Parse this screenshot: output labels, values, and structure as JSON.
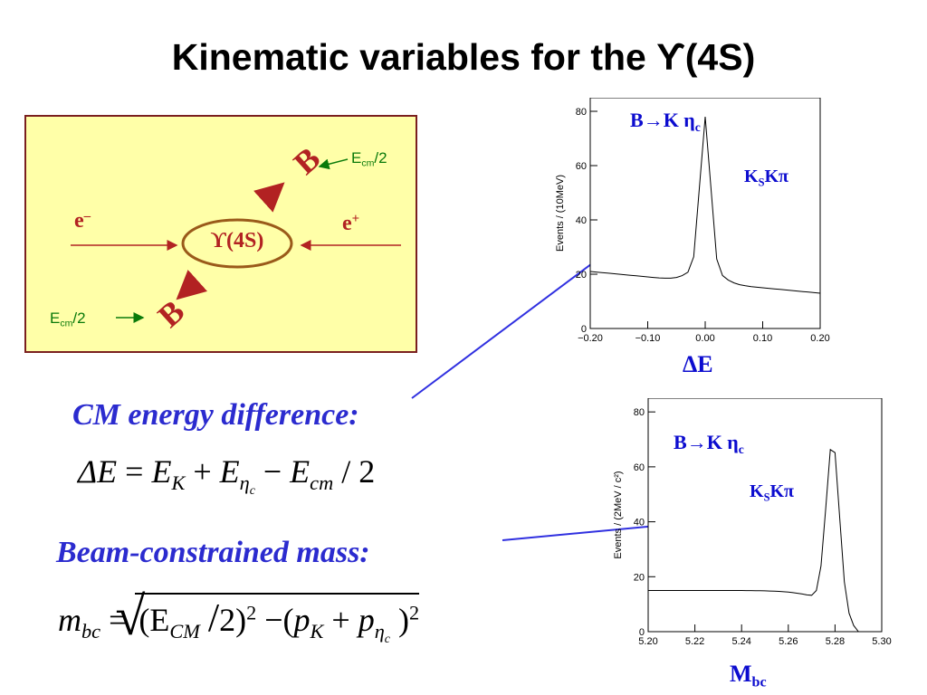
{
  "title": "Kinematic variables for the ϒ(4S)",
  "diagram": {
    "center_label": "ϒ(4S)",
    "e_minus": "e",
    "e_minus_sup": "–",
    "e_plus": "e",
    "e_plus_sup": "+",
    "b_upper": "B",
    "b_lower": "B",
    "ecm_upper": "E",
    "ecm_upper_sub": "cm",
    "ecm_upper_tail": "/2",
    "ecm_lower": "E",
    "ecm_lower_sub": "cm",
    "ecm_lower_tail": "/2",
    "colors": {
      "box_bg": "#ffffa8",
      "box_border": "#7a1f1f",
      "arrows": "#b22222",
      "ecm": "#0a7a0a"
    }
  },
  "sections": {
    "cm_heading": "CM energy difference:",
    "mbc_heading": "Beam-constrained mass:"
  },
  "formula1": {
    "lhs": "ΔE",
    "eq": "=",
    "t1": "E",
    "t1_sub": "K",
    "plus": "+",
    "t2": "E",
    "t2_sub": "η",
    "t2_subsub": "c",
    "minus": "−",
    "t3": "E",
    "t3_sub": "cm",
    "tail": "/ 2"
  },
  "formula2": {
    "lhs": "m",
    "lhs_sub": "bc",
    "eq": "=",
    "a": "(E",
    "a_sub": "CM",
    "b": "2)",
    "b_sup": "2",
    "minus": "−(",
    "p1": "p",
    "p1_sub": "K",
    "plus": "+",
    "p2": "p",
    "p2_sub": "η",
    "p2_subsub": "c",
    "close": ")",
    "close_sup": "2"
  },
  "plot_top": {
    "annotation_main": "B",
    "annotation_arrow": "→",
    "annotation_rest": "K η",
    "annotation_sub": "c",
    "decay_k": "K",
    "decay_k_sub": "S",
    "decay_rest": "Kπ",
    "caption": "ΔE",
    "ylabel": "Events / (10MeV)",
    "xticks": [
      "−0.20",
      "−0.10",
      "0.00",
      "0.10",
      "0.20"
    ],
    "yticks": [
      "0",
      "20",
      "40",
      "60",
      "80"
    ],
    "xlim": [
      -0.2,
      0.2
    ],
    "ylim": [
      0,
      85
    ]
  },
  "plot_bottom": {
    "annotation_main": "B",
    "annotation_arrow": "→",
    "annotation_rest": "K η",
    "annotation_sub": "c",
    "decay_k": "K",
    "decay_k_sub": "S",
    "decay_rest": "Kπ",
    "caption": "M",
    "caption_sub": "bc",
    "ylabel": "Events / (2MeV / c²)",
    "xticks": [
      "5.20",
      "5.22",
      "5.24",
      "5.26",
      "5.28",
      "5.30"
    ],
    "yticks": [
      "0",
      "20",
      "40",
      "60",
      "80"
    ],
    "xlim": [
      5.2,
      5.3
    ],
    "ylim": [
      0,
      85
    ]
  }
}
